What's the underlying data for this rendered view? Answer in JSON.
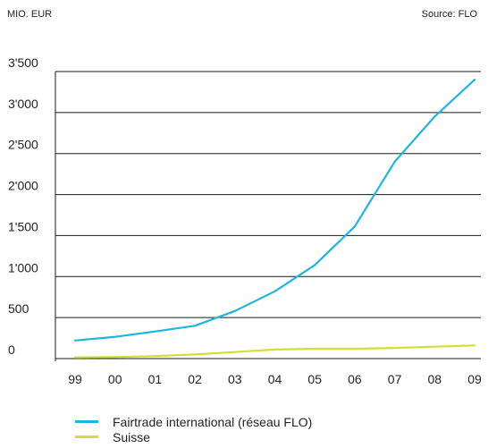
{
  "header": {
    "unit_label": "MIO. EUR",
    "source_label": "Source: FLO"
  },
  "chart_data": {
    "type": "line",
    "title": "",
    "xlabel": "",
    "ylabel": "MIO. EUR",
    "categories": [
      "99",
      "00",
      "01",
      "02",
      "03",
      "04",
      "05",
      "06",
      "07",
      "08",
      "09"
    ],
    "ylim": [
      0,
      3500
    ],
    "yticks": [
      0,
      500,
      1000,
      1500,
      2000,
      2500,
      3000,
      3500
    ],
    "ytick_labels": [
      "0",
      "500",
      "1'000",
      "1'500",
      "2'000",
      "2'500",
      "3'000",
      "3'500"
    ],
    "grid": "horizontal",
    "legend_position": "bottom",
    "series": [
      {
        "name": "Fairtrade international (réseau FLO)",
        "color": "#1fb5df",
        "values": [
          220,
          265,
          330,
          400,
          580,
          820,
          1140,
          1610,
          2400,
          2950,
          3400
        ]
      },
      {
        "name": "Suisse",
        "color": "#d3de3a",
        "values": [
          15,
          18,
          30,
          50,
          80,
          110,
          120,
          120,
          130,
          145,
          160
        ]
      }
    ]
  }
}
